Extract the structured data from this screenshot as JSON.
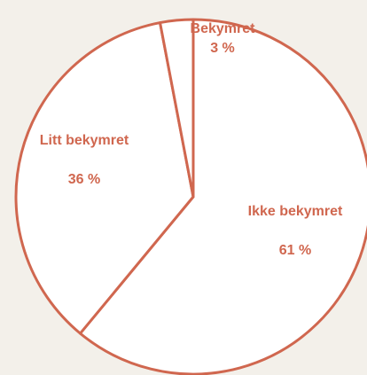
{
  "chart_data": {
    "type": "pie",
    "categories": [
      "Ikke bekymret",
      "Litt bekymret",
      "Bekymret"
    ],
    "values": [
      61,
      36,
      3
    ],
    "value_labels": [
      "61 %",
      "36 %",
      "3 %"
    ],
    "colors": [
      "#ffffff",
      "#ffffff",
      "#ffffff"
    ],
    "edge_color": "#d0674f",
    "label_color": "#d0674f"
  }
}
